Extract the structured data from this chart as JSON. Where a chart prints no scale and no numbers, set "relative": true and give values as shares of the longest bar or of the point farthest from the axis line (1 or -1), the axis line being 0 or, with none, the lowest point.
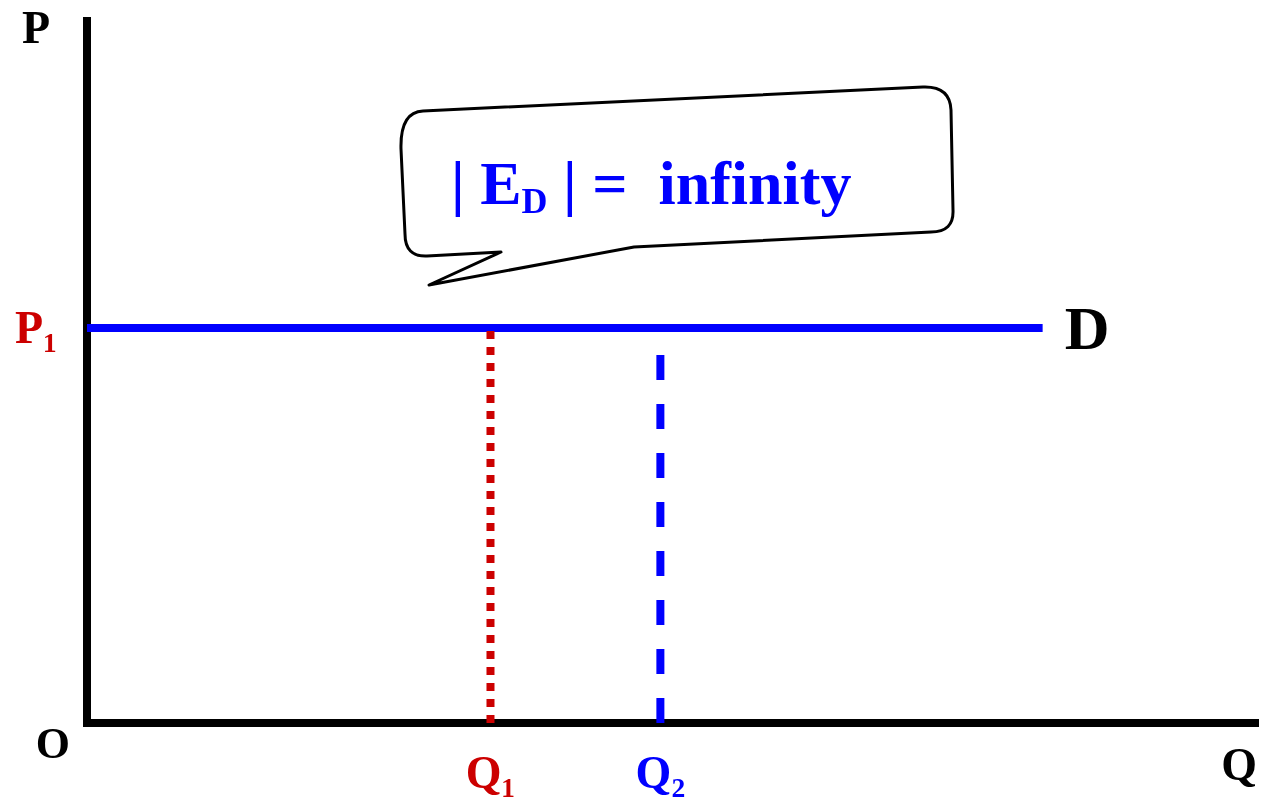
{
  "chart_data": {
    "type": "line",
    "relative": true,
    "xlabel": "Q",
    "categories": [
      null,
      null,
      null,
      null,
      null,
      null,
      null,
      null,
      null,
      null,
      null,
      null,
      null,
      null,
      null,
      null,
      null,
      null,
      null,
      "Q₁",
      null,
      null,
      null,
      null,
      null,
      null,
      null,
      "Q₂",
      null,
      null,
      null,
      null,
      null,
      null,
      null,
      null,
      null,
      null,
      null,
      null,
      null,
      null,
      null,
      null,
      null,
      null,
      null,
      null,
      null,
      null,
      null,
      null,
      null,
      null,
      null,
      null
    ],
    "series": [
      {
        "name": "D",
        "color": "#0000ff",
        "values": [
          1,
          1,
          1,
          1,
          1,
          1,
          1,
          1,
          1,
          1,
          1,
          1,
          1,
          1,
          1,
          1,
          1,
          1,
          1,
          1,
          1,
          1,
          1,
          1,
          1,
          1,
          1,
          1,
          1,
          1,
          1,
          1,
          1,
          1,
          1,
          1,
          1,
          1,
          1,
          1,
          1,
          1,
          1,
          1,
          1,
          1,
          null,
          null,
          null,
          null,
          null,
          null,
          null,
          null,
          null,
          null
        ]
      },
      {
        "color": "#cc0000",
        "x": [
          "Q₁",
          "Q₁"
        ],
        "values": [
          0,
          1
        ],
        "line_style": "dotted"
      },
      {
        "color": "#0000ff",
        "x": [
          "Q₂",
          "Q₂"
        ],
        "values": [
          0,
          1
        ],
        "line_style": "dashed"
      }
    ],
    "annotations": [
      "| E$_{D}$ | =  infinity",
      "P₁",
      "O",
      "P"
    ]
  }
}
